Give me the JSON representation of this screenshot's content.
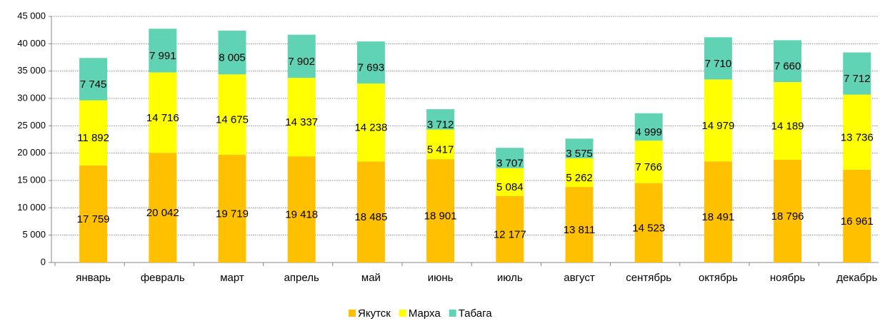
{
  "chart_data": {
    "type": "stacked_bar",
    "categories": [
      "январь",
      "февраль",
      "март",
      "апрель",
      "май",
      "июнь",
      "июль",
      "август",
      "сентябрь",
      "октябрь",
      "ноябрь",
      "декабрь"
    ],
    "series": [
      {
        "name": "Якутск",
        "color": "#ffc000",
        "values": [
          17759,
          20042,
          19719,
          19418,
          18485,
          18901,
          12177,
          13811,
          14523,
          18491,
          18796,
          16961
        ],
        "value_labels": [
          "17 759",
          "20 042",
          "19 719",
          "19 418",
          "18 485",
          "18 901",
          "12 177",
          "13 811",
          "14 523",
          "18 491",
          "18 796",
          "16 961"
        ]
      },
      {
        "name": "Марха",
        "color": "#ffff00",
        "values": [
          11892,
          14716,
          14675,
          14337,
          14238,
          5417,
          5084,
          5262,
          7766,
          14979,
          14189,
          13736
        ],
        "value_labels": [
          "11 892",
          "14 716",
          "14 675",
          "14 337",
          "14 238",
          "5 417",
          "5 084",
          "5 262",
          "7 766",
          "14 979",
          "14 189",
          "13 736"
        ]
      },
      {
        "name": "Табага",
        "color": "#5fd3b3",
        "values": [
          7745,
          7991,
          8005,
          7902,
          7693,
          3712,
          3707,
          3575,
          4999,
          7710,
          7660,
          7712
        ],
        "value_labels": [
          "7 745",
          "7 991",
          "8 005",
          "7 902",
          "7 693",
          "3 712",
          "3 707",
          "3 575",
          "4 999",
          "7 710",
          "7 660",
          "7 712"
        ]
      }
    ],
    "ylim": [
      0,
      45000
    ],
    "yticks": [
      0,
      {
        "value": 5000,
        "label": "5 000"
      },
      {
        "value": 10000,
        "label": "10 000"
      },
      {
        "value": 15000,
        "label": "15 000"
      },
      {
        "value": 20000,
        "label": "20 000"
      },
      {
        "value": 25000,
        "label": "25 000"
      },
      {
        "value": 30000,
        "label": "30 000"
      },
      {
        "value": 35000,
        "label": "35 000"
      },
      {
        "value": 40000,
        "label": "40 000"
      },
      {
        "value": 45000,
        "label": "45 000"
      }
    ],
    "grid": true,
    "legend": "bottom"
  }
}
